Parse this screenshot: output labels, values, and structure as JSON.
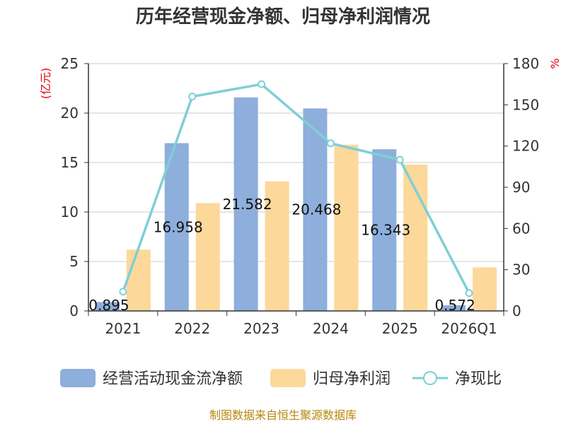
{
  "chart_data": {
    "type": "bar",
    "title": "历年经营现金净额、归母净利润情况",
    "categories": [
      "2021",
      "2022",
      "2023",
      "2024",
      "2025",
      "2026Q1"
    ],
    "series": [
      {
        "name": "经营活动现金流净额",
        "type": "bar",
        "axis": "left",
        "color": "#8eaedb",
        "values": [
          0.895,
          16.958,
          21.582,
          20.468,
          16.343,
          0.572
        ],
        "labels": [
          "0.895",
          "16.958",
          "21.582",
          "20.468",
          "16.343",
          "0.572"
        ]
      },
      {
        "name": "归母净利润",
        "type": "bar",
        "axis": "left",
        "color": "#fcd89a",
        "values": [
          6.2,
          10.9,
          13.1,
          16.8,
          14.8,
          4.4
        ]
      },
      {
        "name": "净现比",
        "type": "line",
        "axis": "right",
        "color": "#7ecfd6",
        "values": [
          14,
          156,
          165,
          122,
          110,
          13
        ]
      }
    ],
    "y_left": {
      "unit": "(亿元)",
      "ylim": [
        0,
        25
      ],
      "ticks": [
        "0",
        "5",
        "10",
        "15",
        "20",
        "25"
      ]
    },
    "y_right": {
      "unit": "%",
      "ylim": [
        0,
        180
      ],
      "ticks": [
        "0",
        "30",
        "60",
        "90",
        "120",
        "150",
        "180"
      ]
    },
    "grid": true,
    "legend_position": "bottom",
    "source": "制图数据来自恒生聚源数据库"
  }
}
